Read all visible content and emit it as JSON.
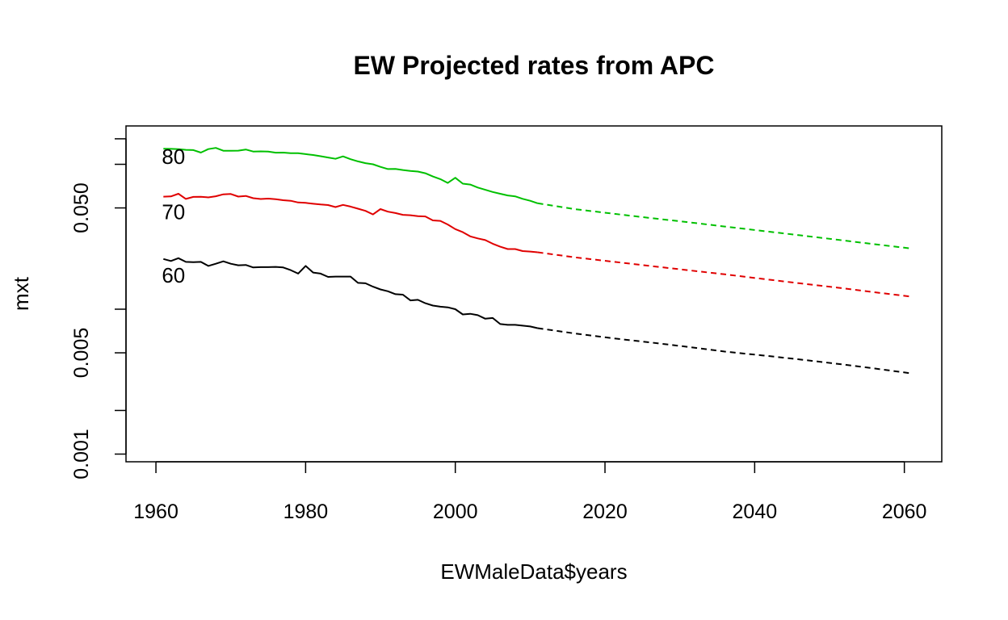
{
  "chart_data": {
    "type": "line",
    "title": "EW Projected rates from APC",
    "xlabel": "EWMaleData$years",
    "ylabel": "mxt",
    "xlim": [
      1956,
      2065
    ],
    "x_ticks": [
      1960,
      1980,
      2000,
      2020,
      2040,
      2060
    ],
    "x_tick_labels": [
      "1960",
      "1980",
      "2000",
      "2020",
      "2040",
      "2060"
    ],
    "y_scale": "log",
    "ylim": [
      0.000885,
      0.184
    ],
    "y_ticks": [
      0.001,
      0.002,
      0.005,
      0.01,
      0.05,
      0.1,
      0.15
    ],
    "y_tick_labels": [
      "0.001",
      "",
      "0.005",
      "",
      "0.050",
      "",
      ""
    ],
    "legend": "none",
    "series": [
      {
        "name": "60",
        "color": "#000000",
        "observed": {
          "x": [
            1961,
            1962,
            1963,
            1964,
            1965,
            1966,
            1967,
            1968,
            1969,
            1970,
            1971,
            1972,
            1973,
            1974,
            1975,
            1976,
            1977,
            1978,
            1979,
            1980,
            1981,
            1982,
            1983,
            1984,
            1985,
            1986,
            1987,
            1988,
            1989,
            1990,
            1991,
            1992,
            1993,
            1994,
            1995,
            1996,
            1997,
            1998,
            1999,
            2000,
            2001,
            2002,
            2003,
            2004,
            2005,
            2006,
            2007,
            2008,
            2009,
            2010,
            2011
          ],
          "y": [
            0.0222,
            0.0215,
            0.0225,
            0.0212,
            0.0211,
            0.0212,
            0.0199,
            0.0206,
            0.0214,
            0.0206,
            0.0201,
            0.0202,
            0.0194,
            0.0195,
            0.0195,
            0.0196,
            0.0194,
            0.0186,
            0.0176,
            0.0199,
            0.0179,
            0.0176,
            0.0167,
            0.0168,
            0.0168,
            0.0168,
            0.0152,
            0.0151,
            0.0143,
            0.0137,
            0.0133,
            0.0127,
            0.0126,
            0.0115,
            0.0116,
            0.011,
            0.0106,
            0.0104,
            0.0103,
            0.01,
            0.0092,
            0.0093,
            0.0091,
            0.0086,
            0.0087,
            0.0079,
            0.0078,
            0.0078,
            0.0077,
            0.0076,
            0.0074
          ]
        },
        "projected": {
          "x": [
            2011,
            2016,
            2021,
            2026,
            2031,
            2036,
            2041,
            2046,
            2051,
            2056,
            2061
          ],
          "y": [
            0.0074,
            0.0068,
            0.0063,
            0.0059,
            0.0055,
            0.0051,
            0.0048,
            0.0045,
            0.0042,
            0.0039,
            0.0036
          ]
        }
      },
      {
        "name": "70",
        "color": "#e00000",
        "observed": {
          "x": [
            1961,
            1962,
            1963,
            1964,
            1965,
            1966,
            1967,
            1968,
            1969,
            1970,
            1971,
            1972,
            1973,
            1974,
            1975,
            1976,
            1977,
            1978,
            1979,
            1980,
            1981,
            1982,
            1983,
            1984,
            1985,
            1986,
            1987,
            1988,
            1989,
            1990,
            1991,
            1992,
            1993,
            1994,
            1995,
            1996,
            1997,
            1998,
            1999,
            2000,
            2001,
            2002,
            2003,
            2004,
            2005,
            2006,
            2007,
            2008,
            2009,
            2010,
            2011
          ],
          "y": [
            0.0598,
            0.06,
            0.0626,
            0.0577,
            0.0596,
            0.0597,
            0.0591,
            0.0602,
            0.0621,
            0.0624,
            0.0599,
            0.0605,
            0.0584,
            0.0576,
            0.058,
            0.0574,
            0.0565,
            0.056,
            0.0545,
            0.0542,
            0.0534,
            0.0528,
            0.0523,
            0.0507,
            0.0525,
            0.0511,
            0.0494,
            0.0477,
            0.0451,
            0.0491,
            0.0471,
            0.0461,
            0.0448,
            0.0445,
            0.0439,
            0.0437,
            0.041,
            0.0407,
            0.0384,
            0.0357,
            0.034,
            0.0318,
            0.0308,
            0.03,
            0.0283,
            0.027,
            0.026,
            0.026,
            0.0252,
            0.025,
            0.0247
          ]
        },
        "projected": {
          "x": [
            2011,
            2016,
            2021,
            2026,
            2031,
            2036,
            2041,
            2046,
            2051,
            2056,
            2061
          ],
          "y": [
            0.0247,
            0.0228,
            0.0213,
            0.0199,
            0.0186,
            0.0174,
            0.0162,
            0.0151,
            0.0141,
            0.0131,
            0.0122
          ]
        }
      },
      {
        "name": "80",
        "color": "#00c000",
        "observed": {
          "x": [
            1961,
            1962,
            1963,
            1964,
            1965,
            1966,
            1967,
            1968,
            1969,
            1970,
            1971,
            1972,
            1973,
            1974,
            1975,
            1976,
            1977,
            1978,
            1979,
            1980,
            1981,
            1982,
            1983,
            1984,
            1985,
            1986,
            1987,
            1988,
            1989,
            1990,
            1991,
            1992,
            1993,
            1994,
            1995,
            1996,
            1997,
            1998,
            1999,
            2000,
            2001,
            2002,
            2003,
            2004,
            2005,
            2006,
            2007,
            2008,
            2009,
            2010,
            2011
          ],
          "y": [
            0.1279,
            0.1278,
            0.1273,
            0.1259,
            0.1254,
            0.1205,
            0.1273,
            0.1298,
            0.1241,
            0.1239,
            0.1242,
            0.1265,
            0.1225,
            0.1228,
            0.1225,
            0.1204,
            0.1205,
            0.1192,
            0.1192,
            0.1176,
            0.1159,
            0.1137,
            0.1114,
            0.1091,
            0.1134,
            0.1085,
            0.1048,
            0.1019,
            0.1001,
            0.096,
            0.0927,
            0.093,
            0.0913,
            0.09,
            0.0891,
            0.0868,
            0.0824,
            0.079,
            0.0744,
            0.0807,
            0.0735,
            0.0725,
            0.0691,
            0.0667,
            0.0644,
            0.0626,
            0.061,
            0.0601,
            0.0578,
            0.056,
            0.0538
          ]
        },
        "projected": {
          "x": [
            2011,
            2016,
            2021,
            2026,
            2031,
            2036,
            2041,
            2046,
            2051,
            2056,
            2061
          ],
          "y": [
            0.0538,
            0.049,
            0.0457,
            0.0426,
            0.0399,
            0.0372,
            0.0347,
            0.0324,
            0.0302,
            0.0281,
            0.0262
          ]
        }
      }
    ],
    "annotations": [
      {
        "text": "60",
        "x": 1961,
        "y": 0.0171
      },
      {
        "text": "70",
        "x": 1961,
        "y": 0.0468
      },
      {
        "text": "80",
        "x": 1961,
        "y": 0.113
      }
    ]
  }
}
